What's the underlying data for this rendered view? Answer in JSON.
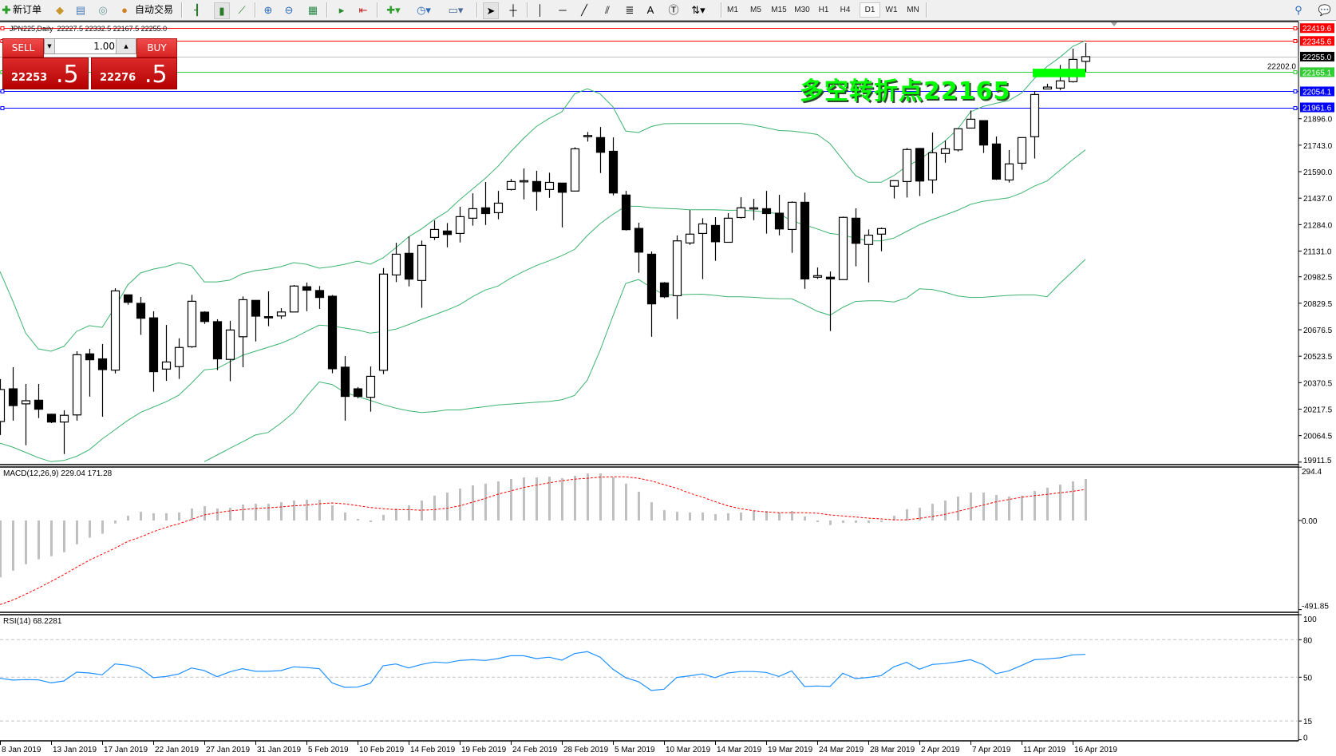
{
  "toolbar": {
    "new_order": "新订单",
    "auto_trading": "自动交易",
    "timeframes": [
      "M1",
      "M5",
      "M15",
      "M30",
      "H1",
      "H4",
      "D1",
      "W1",
      "MN"
    ],
    "selected_timeframe": "D1"
  },
  "chart": {
    "header": "JPN225,Daily  22227.5 22332.5 22167.5 22255.0",
    "annotation": "多空转折点22165",
    "annotation_color": "#00ff00"
  },
  "trade_panel": {
    "sell_label": "SELL",
    "buy_label": "BUY",
    "lot": "1.00",
    "sell_price_main": "22253",
    "sell_price_big": ".5",
    "buy_price_main": "22276",
    "buy_price_big": ".5"
  },
  "macd_label": "MACD(12,26,9) 229.04 171.28",
  "rsi_label": "RSI(14) 68.2281",
  "chart_data": {
    "type": "candlestick",
    "symbol": "JPN225",
    "timeframe": "Daily",
    "ylim": [
      19911.5,
      22419.6
    ],
    "price_ticks": [
      "21896.0",
      "21743.0",
      "21590.0",
      "21437.0",
      "21284.0",
      "21131.0",
      "20982.5",
      "20829.5",
      "20676.5",
      "20523.5",
      "20370.5",
      "20217.5",
      "20064.5",
      "19911.5"
    ],
    "hidden_tick": "22202.0",
    "levels": [
      {
        "value": 22419.6,
        "label": "22419.6",
        "color": "#ff0000"
      },
      {
        "value": 22345.6,
        "label": "22345.6",
        "color": "#ff0000"
      },
      {
        "value": 22255.0,
        "label": "22255.0",
        "color": "#000000",
        "line": "#c0c0c0"
      },
      {
        "value": 22165.1,
        "label": "22165.1",
        "color": "#32cd32"
      },
      {
        "value": 22054.1,
        "label": "22054.1",
        "color": "#0000ff"
      },
      {
        "value": 21961.6,
        "label": "21961.6",
        "color": "#0000ff"
      }
    ],
    "highlight_zone": {
      "from_bar": 81,
      "to_bar": 85,
      "high": 22185,
      "low": 22136,
      "color": "#00ff00"
    },
    "date_labels": [
      "8 Jan 2019",
      "13 Jan 2019",
      "17 Jan 2019",
      "22 Jan 2019",
      "27 Jan 2019",
      "31 Jan 2019",
      "5 Feb 2019",
      "10 Feb 2019",
      "14 Feb 2019",
      "19 Feb 2019",
      "24 Feb 2019",
      "28 Feb 2019",
      "5 Mar 2019",
      "10 Mar 2019",
      "14 Mar 2019",
      "19 Mar 2019",
      "24 Mar 2019",
      "28 Mar 2019",
      "2 Apr 2019",
      "7 Apr 2019",
      "11 Apr 2019",
      "16 Apr 2019"
    ],
    "ohlc": [
      [
        20146,
        20391,
        20068,
        20331
      ],
      [
        20335,
        20460,
        20151,
        20238
      ],
      [
        20248,
        20363,
        20009,
        20266
      ],
      [
        20269,
        20363,
        20166,
        20217
      ],
      [
        20188,
        20191,
        20137,
        20143
      ],
      [
        20143,
        20211,
        19958,
        20182
      ],
      [
        20184,
        20552,
        20151,
        20532
      ],
      [
        20537,
        20566,
        20290,
        20503
      ],
      [
        20508,
        20594,
        20174,
        20446
      ],
      [
        20443,
        20916,
        20424,
        20901
      ],
      [
        20878,
        20878,
        20821,
        20835
      ],
      [
        20829,
        20866,
        20647,
        20743
      ],
      [
        20745,
        20783,
        20318,
        20434
      ],
      [
        20449,
        20704,
        20381,
        20490
      ],
      [
        20463,
        20627,
        20392,
        20574
      ],
      [
        20578,
        20878,
        20572,
        20841
      ],
      [
        20778,
        20783,
        20710,
        20724
      ],
      [
        20723,
        20737,
        20443,
        20508
      ],
      [
        20505,
        20728,
        20379,
        20675
      ],
      [
        20636,
        20869,
        20460,
        20850
      ],
      [
        20846,
        20846,
        20609,
        20755
      ],
      [
        20752,
        20898,
        20697,
        20747
      ],
      [
        20756,
        20801,
        20739,
        20779
      ],
      [
        20779,
        20935,
        20779,
        20929
      ],
      [
        20925,
        20949,
        20784,
        20905
      ],
      [
        20903,
        20929,
        20797,
        20863
      ],
      [
        20870,
        20877,
        20425,
        20451
      ],
      [
        20460,
        20524,
        20151,
        20291
      ],
      [
        20335,
        20345,
        20280,
        20291
      ],
      [
        20286,
        20464,
        20203,
        20407
      ],
      [
        20442,
        21033,
        20420,
        20998
      ],
      [
        20993,
        21179,
        20952,
        21113
      ],
      [
        21118,
        21216,
        20927,
        20969
      ],
      [
        20961,
        21192,
        20803,
        21164
      ],
      [
        21210,
        21308,
        21195,
        21256
      ],
      [
        21247,
        21293,
        21153,
        21227
      ],
      [
        21233,
        21387,
        21181,
        21330
      ],
      [
        21321,
        21465,
        21278,
        21376
      ],
      [
        21381,
        21530,
        21282,
        21348
      ],
      [
        21353,
        21479,
        21315,
        21408
      ],
      [
        21487,
        21548,
        21481,
        21533
      ],
      [
        21538,
        21608,
        21430,
        21538
      ],
      [
        21533,
        21595,
        21365,
        21476
      ],
      [
        21487,
        21584,
        21439,
        21528
      ],
      [
        21524,
        21524,
        21268,
        21471
      ],
      [
        21478,
        21731,
        21478,
        21722
      ],
      [
        21799,
        21819,
        21764,
        21799
      ],
      [
        21787,
        21848,
        21582,
        21702
      ],
      [
        21708,
        21788,
        21453,
        21467
      ],
      [
        21455,
        21479,
        21250,
        21255
      ],
      [
        21262,
        21295,
        21006,
        21125
      ],
      [
        21113,
        21129,
        20636,
        20826
      ],
      [
        20947,
        20952,
        20859,
        20867
      ],
      [
        20873,
        21221,
        20738,
        21190
      ],
      [
        21178,
        21368,
        21167,
        21229
      ],
      [
        21233,
        21321,
        20969,
        21288
      ],
      [
        21279,
        21327,
        21075,
        21185
      ],
      [
        21182,
        21350,
        21182,
        21321
      ],
      [
        21325,
        21442,
        21319,
        21381
      ],
      [
        21381,
        21433,
        21310,
        21381
      ],
      [
        21376,
        21479,
        21232,
        21348
      ],
      [
        21350,
        21456,
        21222,
        21259
      ],
      [
        21256,
        21418,
        21121,
        21413
      ],
      [
        21413,
        21469,
        20913,
        20970
      ],
      [
        20980,
        21036,
        20970,
        20989
      ],
      [
        20980,
        21013,
        20669,
        20970
      ],
      [
        20966,
        21330,
        20966,
        21326
      ],
      [
        21321,
        21378,
        21043,
        21176
      ],
      [
        21169,
        21256,
        20950,
        21223
      ],
      [
        21229,
        21267,
        21130,
        21261
      ],
      [
        21506,
        21538,
        21435,
        21538
      ],
      [
        21533,
        21727,
        21441,
        21718
      ],
      [
        21724,
        21727,
        21449,
        21536
      ],
      [
        21542,
        21816,
        21464,
        21699
      ],
      [
        21695,
        21770,
        21642,
        21722
      ],
      [
        21716,
        21838,
        21707,
        21838
      ],
      [
        21842,
        21944,
        21842,
        21893
      ],
      [
        21885,
        21885,
        21698,
        21744
      ],
      [
        21750,
        21793,
        21542,
        21547
      ],
      [
        21542,
        21715,
        21527,
        21635
      ],
      [
        21639,
        21787,
        21601,
        21787
      ],
      [
        21792,
        22056,
        21666,
        22036
      ],
      [
        22068,
        22098,
        22068,
        22079
      ],
      [
        22073,
        22207,
        22062,
        22115
      ],
      [
        22110,
        22301,
        22105,
        22239
      ],
      [
        22227.5,
        22332.5,
        22167.5,
        22255.0
      ]
    ],
    "bollinger": {
      "color": "#3cb371",
      "upper": [
        21013,
        20843,
        20658,
        20566,
        20552,
        20580,
        20667,
        20700,
        20690,
        20806,
        20935,
        21004,
        21027,
        21041,
        21064,
        21046,
        20953,
        20953,
        20963,
        21000,
        21018,
        21027,
        21041,
        21064,
        21055,
        21032,
        21041,
        21055,
        21073,
        21055,
        21092,
        21150,
        21213,
        21259,
        21313,
        21359,
        21428,
        21490,
        21551,
        21621,
        21705,
        21782,
        21851,
        21898,
        21936,
        22039,
        22069,
        22039,
        21965,
        21825,
        21816,
        21851,
        21867,
        21868,
        21868,
        21868,
        21868,
        21868,
        21868,
        21859,
        21844,
        21828,
        21825,
        21816,
        21805,
        21752,
        21659,
        21567,
        21529,
        21529,
        21567,
        21621,
        21659,
        21713,
        21767,
        21836,
        21936,
        21967,
        21985,
        22001,
        22044,
        22128,
        22198,
        22251,
        22313,
        22348
      ],
      "middle": [
        20021,
        19998,
        19968,
        19937,
        19914,
        19921,
        19945,
        19983,
        20045,
        20098,
        20152,
        20198,
        20229,
        20260,
        20298,
        20368,
        20444,
        20452,
        20491,
        20529,
        20552,
        20575,
        20598,
        20629,
        20667,
        20703,
        20698,
        20686,
        20675,
        20657,
        20667,
        20680,
        20706,
        20736,
        20762,
        20790,
        20821,
        20867,
        20906,
        20929,
        20975,
        21013,
        21047,
        21075,
        21105,
        21141,
        21221,
        21290,
        21344,
        21390,
        21390,
        21382,
        21378,
        21375,
        21370,
        21370,
        21370,
        21367,
        21367,
        21364,
        21356,
        21347,
        21306,
        21283,
        21259,
        21233,
        21224,
        21206,
        21190,
        21190,
        21206,
        21244,
        21283,
        21313,
        21339,
        21367,
        21401,
        21419,
        21429,
        21439,
        21467,
        21506,
        21536,
        21598,
        21659,
        21716
      ],
      "lower": [
        null,
        null,
        null,
        null,
        null,
        null,
        null,
        null,
        null,
        null,
        null,
        null,
        null,
        null,
        null,
        null,
        19914,
        19952,
        19991,
        20029,
        20068,
        20083,
        20137,
        20198,
        20291,
        20375,
        20360,
        20314,
        20291,
        20268,
        20244,
        20223,
        20208,
        20198,
        20203,
        20213,
        20213,
        20223,
        20232,
        20242,
        20247,
        20252,
        20257,
        20262,
        20272,
        20297,
        20386,
        20558,
        20756,
        20944,
        20967,
        20921,
        20878,
        20878,
        20881,
        20882,
        20875,
        20867,
        20867,
        20864,
        20859,
        20856,
        20855,
        20821,
        20783,
        20760,
        20806,
        20840,
        20844,
        20844,
        20837,
        20860,
        20913,
        20909,
        20893,
        20872,
        20863,
        20864,
        20870,
        20875,
        20878,
        20878,
        20867,
        20944,
        21013,
        21083
      ]
    },
    "macd": {
      "ylim": [
        -491.85,
        294.4
      ],
      "ticks": [
        "294.4",
        "0.00",
        "-491.85"
      ],
      "histogram_color": "#c0c0c0",
      "signal_color": "#ff0000",
      "histogram": [
        -314,
        -277,
        -241,
        -214,
        -197,
        -175,
        -131,
        -95,
        -73,
        -16,
        26,
        48,
        40,
        40,
        44,
        66,
        79,
        66,
        70,
        88,
        92,
        92,
        101,
        110,
        115,
        115,
        84,
        44,
        9,
        -9,
        31,
        66,
        84,
        110,
        137,
        154,
        176,
        194,
        203,
        216,
        229,
        238,
        238,
        242,
        233,
        247,
        260,
        260,
        238,
        203,
        159,
        101,
        57,
        48,
        44,
        44,
        35,
        40,
        44,
        53,
        53,
        44,
        53,
        22,
        -9,
        -25,
        -13,
        -13,
        -13,
        -9,
        26,
        62,
        70,
        92,
        110,
        132,
        154,
        154,
        141,
        132,
        137,
        163,
        181,
        198,
        216,
        229.04
      ],
      "signal": [
        -464,
        -439,
        -407,
        -373,
        -336,
        -299,
        -258,
        -219,
        -186,
        -153,
        -116,
        -91,
        -62,
        -38,
        -18,
        6,
        31,
        43,
        53,
        60,
        66,
        70,
        75,
        81,
        85,
        92,
        97,
        92,
        82,
        72,
        65,
        60,
        60,
        57,
        60,
        68,
        81,
        101,
        122,
        145,
        163,
        182,
        195,
        208,
        219,
        228,
        233,
        239,
        241,
        241,
        233,
        219,
        198,
        178,
        151,
        129,
        104,
        81,
        65,
        54,
        47,
        43,
        43,
        43,
        40,
        31,
        25,
        19,
        13,
        9,
        4,
        4,
        12,
        22,
        34,
        50,
        68,
        85,
        103,
        116,
        128,
        137,
        144,
        153,
        161,
        171.28
      ]
    },
    "rsi": {
      "ylim": [
        0,
        100
      ],
      "ticks": [
        "100",
        "80",
        "50",
        "15",
        "0"
      ],
      "levels": [
        80,
        50,
        15
      ],
      "color": "#1e90ff",
      "values": [
        49.1,
        47.7,
        48.1,
        47.9,
        45.5,
        47.0,
        54.0,
        53.4,
        51.9,
        60.6,
        59.6,
        57.0,
        49.6,
        50.6,
        52.6,
        57.4,
        55.3,
        50.4,
        54.3,
        56.8,
        54.7,
        54.7,
        55.3,
        58.3,
        57.7,
        56.8,
        45.5,
        41.9,
        42.1,
        45.1,
        59.1,
        60.6,
        57.4,
        60.2,
        62.1,
        61.5,
        63.4,
        64.0,
        63.4,
        64.9,
        67.2,
        67.2,
        64.9,
        66.0,
        63.6,
        68.9,
        70.4,
        66.0,
        56.4,
        49.6,
        46.4,
        39.4,
        40.4,
        49.8,
        51.1,
        52.6,
        49.6,
        53.4,
        54.5,
        54.5,
        53.8,
        50.6,
        55.1,
        42.6,
        43.0,
        42.6,
        53.2,
        48.9,
        49.8,
        51.3,
        58.3,
        61.9,
        56.4,
        60.2,
        60.9,
        62.3,
        64.0,
        60.0,
        52.8,
        55.1,
        59.4,
        64.0,
        64.7,
        65.5,
        67.9,
        68.2281
      ]
    }
  }
}
